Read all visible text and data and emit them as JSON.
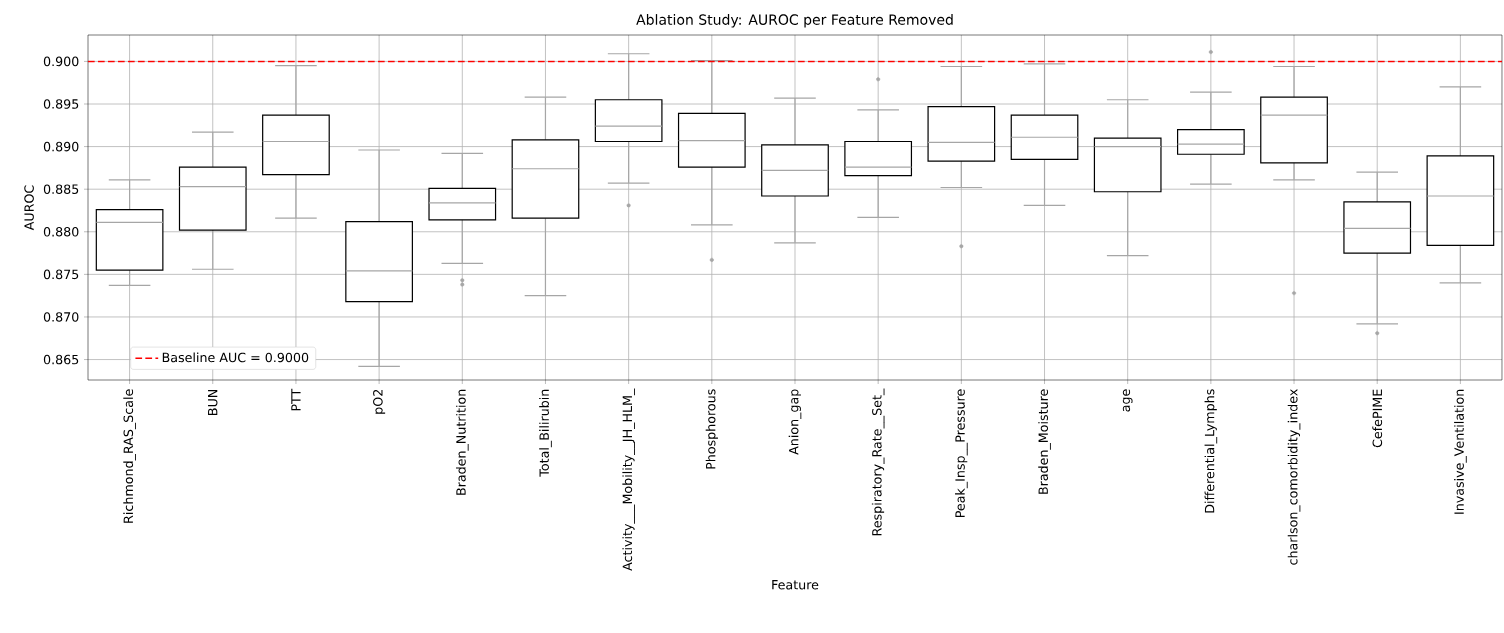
{
  "chart_data": {
    "type": "box",
    "title": "Ablation Study: AUROC per Feature Removed",
    "xlabel": "Feature",
    "ylabel": "AUROC",
    "categories": [
      "Richmond_RAS_Scale",
      "BUN",
      "PTT",
      "pO2",
      "Braden_Nutrition",
      "Total_Bilirubin",
      "Activity___Mobility__JH_HLM_",
      "Phosphorous",
      "Anion_gap",
      "Respiratory_Rate__Set_",
      "Peak_Insp__Pressure",
      "Braden_Moisture",
      "age",
      "Differential_Lymphs",
      "charlson_comorbidity_index",
      "CefePIME",
      "Invasive_Ventilation"
    ],
    "boxes": [
      {
        "low": 0.8737,
        "q1": 0.8755,
        "median": 0.8811,
        "q3": 0.8826,
        "high": 0.8861
      },
      {
        "low": 0.8756,
        "q1": 0.8802,
        "median": 0.8853,
        "q3": 0.8876,
        "high": 0.8917
      },
      {
        "low": 0.8816,
        "q1": 0.8867,
        "median": 0.8906,
        "q3": 0.8937,
        "high": 0.8995
      },
      {
        "low": 0.8642,
        "q1": 0.8718,
        "median": 0.8754,
        "q3": 0.8812,
        "high": 0.8896
      },
      {
        "low": 0.8763,
        "q1": 0.8814,
        "median": 0.8834,
        "q3": 0.8851,
        "high": 0.8892,
        "outliers": [
          0.8743,
          0.8738
        ]
      },
      {
        "low": 0.8725,
        "q1": 0.8816,
        "median": 0.8874,
        "q3": 0.8908,
        "high": 0.8958
      },
      {
        "low": 0.8857,
        "q1": 0.8906,
        "median": 0.8924,
        "q3": 0.8955,
        "high": 0.9009,
        "outliers": [
          0.8831
        ]
      },
      {
        "low": 0.8808,
        "q1": 0.8876,
        "median": 0.8907,
        "q3": 0.8939,
        "high": 0.9001,
        "outliers": [
          0.8767
        ]
      },
      {
        "low": 0.8787,
        "q1": 0.8842,
        "median": 0.8872,
        "q3": 0.8902,
        "high": 0.8957
      },
      {
        "low": 0.8817,
        "q1": 0.8866,
        "median": 0.8876,
        "q3": 0.8906,
        "high": 0.8943,
        "outliers": [
          0.8979
        ]
      },
      {
        "low": 0.8852,
        "q1": 0.8883,
        "median": 0.8905,
        "q3": 0.8947,
        "high": 0.8994,
        "outliers": [
          0.8783
        ]
      },
      {
        "low": 0.8831,
        "q1": 0.8885,
        "median": 0.8911,
        "q3": 0.8937,
        "high": 0.8997
      },
      {
        "low": 0.8772,
        "q1": 0.8847,
        "median": 0.89,
        "q3": 0.891,
        "high": 0.8955
      },
      {
        "low": 0.8856,
        "q1": 0.8891,
        "median": 0.8903,
        "q3": 0.892,
        "high": 0.8964,
        "outliers": [
          0.9011
        ]
      },
      {
        "low": 0.8861,
        "q1": 0.8881,
        "median": 0.8937,
        "q3": 0.8958,
        "high": 0.8994,
        "outliers": [
          0.8728
        ]
      },
      {
        "low": 0.8692,
        "q1": 0.8775,
        "median": 0.8804,
        "q3": 0.8835,
        "high": 0.887,
        "outliers": [
          0.8681
        ]
      },
      {
        "low": 0.874,
        "q1": 0.8784,
        "median": 0.8842,
        "q3": 0.8889,
        "high": 0.897
      }
    ],
    "ylim": [
      0.8626,
      0.9031
    ],
    "yticks": [
      0.865,
      {
        "value": 0.87,
        "label": "0.870"
      },
      0.875,
      {
        "value": 0.88,
        "label": "0.880"
      },
      0.885,
      {
        "value": 0.89,
        "label": "0.890"
      },
      0.895,
      {
        "value": 0.9,
        "label": "0.900"
      }
    ],
    "ref_lines": [
      {
        "axis": "y",
        "value": 0.9,
        "label": "Baseline AUC = 0.9000",
        "color": "#ff0000",
        "line_style": "dashed"
      }
    ],
    "grid": true,
    "legend": "bottom left"
  }
}
